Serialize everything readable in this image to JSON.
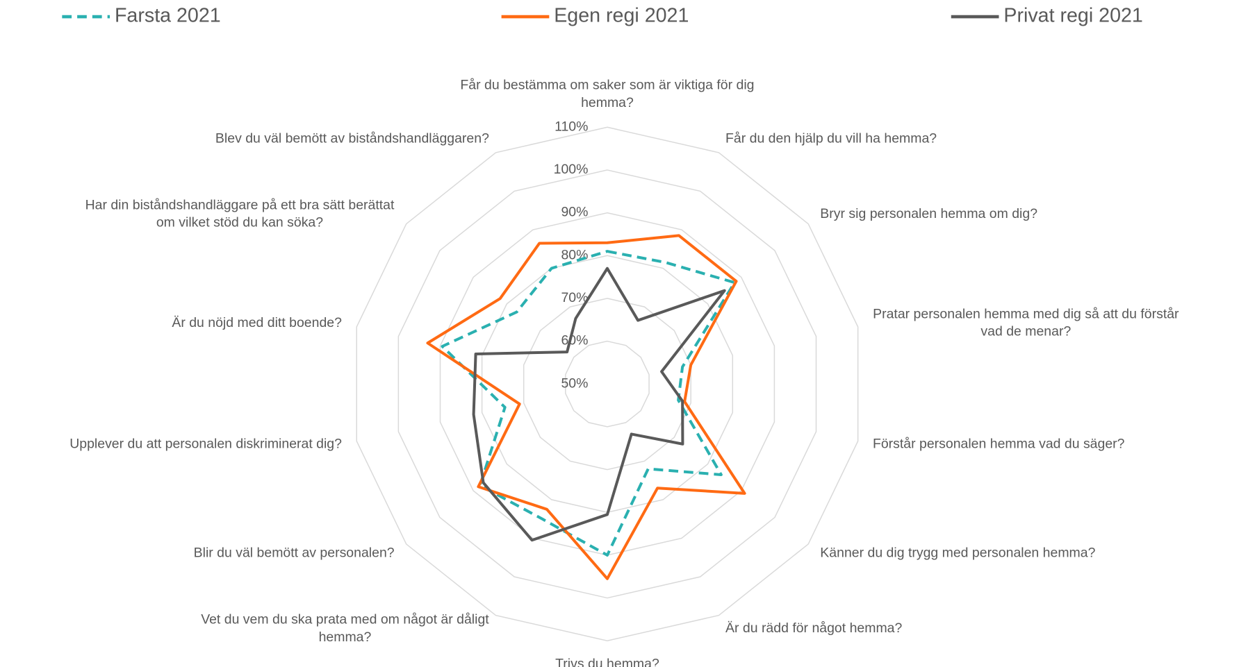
{
  "chart_data": {
    "type": "radar",
    "categories": [
      "Får du bestämma om saker som är viktiga för dig hemma?",
      "Får du den hjälp du vill ha hemma?",
      "Bryr sig personalen hemma om dig?",
      "Pratar personalen hemma med dig så att du förstår vad de menar?",
      "Förstår personalen hemma vad du säger?",
      "Känner du dig trygg med personalen hemma?",
      "Är du rädd för något hemma?",
      "Trivs du hemma?",
      "Vet du vem du ska prata med om något är dåligt hemma?",
      "Blir du väl bemött av personalen?",
      "Upplever du att personalen diskriminerat dig?",
      "Är du nöjd med ditt boende?",
      "Har din biståndshandläggare på ett bra sätt berättat om vilket stöd du kan söka?",
      "Blev du väl bemött av biståndshandläggaren?"
    ],
    "series": [
      {
        "name": "Farsta 2021",
        "color": "#2ab0b0",
        "dashed": true,
        "values": [
          81,
          81.5,
          88,
          68,
          67,
          84,
          72,
          90,
          85,
          88,
          74.5,
          89.5,
          77,
          80
        ]
      },
      {
        "name": "Egen regi 2021",
        "color": "#ff6a13",
        "values": [
          83,
          88.5,
          88.5,
          70,
          68.5,
          91,
          77,
          95.5,
          82.5,
          88.5,
          71,
          93,
          82,
          86.5
        ]
      },
      {
        "name": "Privat regi 2021",
        "color": "#595959",
        "values": [
          77,
          66.5,
          85,
          63,
          68,
          72.5,
          63,
          80.5,
          90.5,
          87,
          82,
          81.5,
          62,
          67
        ]
      }
    ],
    "rlim": [
      50,
      110
    ],
    "rticks": [
      {
        "value": 50,
        "label": "50%"
      },
      {
        "value": 60,
        "label": "60%"
      },
      {
        "value": 70,
        "label": "70%"
      },
      {
        "value": 80,
        "label": "80%"
      },
      {
        "value": 90,
        "label": "90%"
      },
      {
        "value": 100,
        "label": "100%"
      },
      {
        "value": 110,
        "label": "110%"
      }
    ],
    "grid": true
  }
}
